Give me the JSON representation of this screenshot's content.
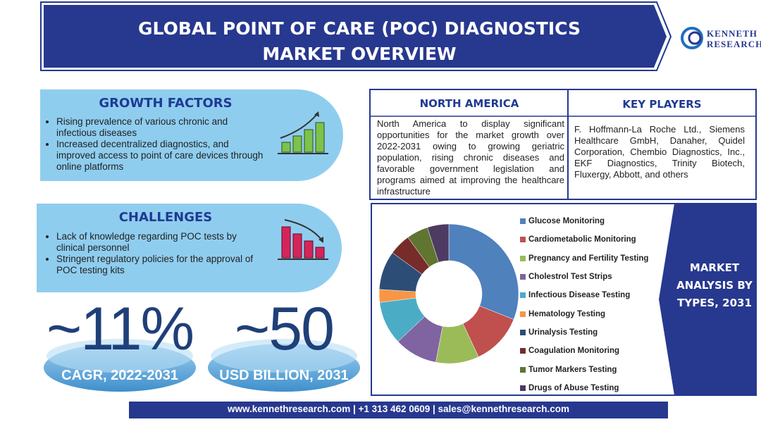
{
  "header": {
    "title_lines": [
      "GLOBAL POINT OF CARE (POC) DIAGNOSTICS",
      "MARKET OVERVIEW"
    ]
  },
  "logo": {
    "lines": [
      "KENNETH",
      "RESEARCH"
    ]
  },
  "growth_factors": {
    "title": "GROWTH FACTORS",
    "items": [
      "Rising prevalence of various chronic and infectious diseases",
      "Increased decentralized diagnostics, and improved access to point of care devices through online platforms"
    ]
  },
  "challenges": {
    "title": "CHALLENGES",
    "items": [
      "Lack of knowledge regarding POC tests by clinical personnel",
      "Stringent regulatory policies for the approval of POC testing kits"
    ]
  },
  "stats": [
    {
      "value": "~11%",
      "label": "CAGR, 2022-2031"
    },
    {
      "value": "~50",
      "label": "USD BILLION, 2031"
    }
  ],
  "north_america": {
    "title": "NORTH AMERICA",
    "text": "North America to display significant opportunities for the market growth over 2022-2031 owing to growing geriatric population, rising chronic diseases and favorable government legislation and programs aimed at improving the healthcare infrastructure"
  },
  "key_players": {
    "title": "KEY PLAYERS",
    "text": "F. Hoffmann-La Roche Ltd., Siemens Healthcare GmbH, Danaher, Quidel Corporation, Chembio Diagnostics, Inc., EKF Diagnostics, Trinity Biotech, Fluxergy, Abbott, and others"
  },
  "chart_data": {
    "type": "donut",
    "categories": [
      "Glucose Monitoring",
      "Cardiometabolic Monitoring",
      "Pregnancy and Fertility Testing",
      "Cholestrol Test Strips",
      "Infectious Disease Testing",
      "Hematology Testing",
      "Urinalysis Testing",
      "Coagulation Monitoring",
      "Tumor Markers Testing",
      "Drugs of Abuse Testing"
    ],
    "values": [
      31,
      12,
      10,
      10,
      10,
      3,
      9,
      5,
      5,
      5
    ],
    "colors": [
      "#4f81bd",
      "#c0504d",
      "#9bbb59",
      "#8064a2",
      "#4bacc6",
      "#f79646",
      "#2c4d75",
      "#772c2a",
      "#5f7530",
      "#4d3b62"
    ]
  },
  "market_analysis": {
    "title": "MARKET ANALYSIS BY TYPES, 2031"
  },
  "footer": {
    "text": "www.kennethresearch.com | +1 313 462 0609 | sales@kennethresearch.com"
  }
}
